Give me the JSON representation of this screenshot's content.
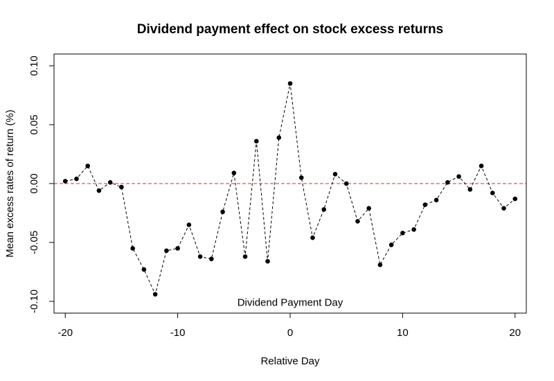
{
  "chart_data": {
    "type": "line",
    "title": "Dividend payment effect on stock excess returns",
    "xlabel": "Relative Day",
    "ylabel": "Mean excess rates of return (%)",
    "xlim": [
      -21,
      21
    ],
    "ylim": [
      -0.11,
      0.11
    ],
    "xticks": [
      -20,
      -10,
      0,
      10,
      20
    ],
    "xtick_labels": [
      "-20",
      "-10",
      "0",
      "10",
      "20"
    ],
    "yticks": [
      -0.1,
      -0.05,
      0.0,
      0.05,
      0.1
    ],
    "ytick_labels": [
      "-0.10",
      "-0.05",
      "0.00",
      "0.05",
      "0.10"
    ],
    "grid": false,
    "legend": "none",
    "series": [
      {
        "line_style": "dashed",
        "marker": "filled-circle",
        "color": "#000000",
        "x": [
          -20,
          -19,
          -18,
          -17,
          -16,
          -15,
          -14,
          -13,
          -12,
          -11,
          -10,
          -9,
          -8,
          -7,
          -6,
          -5,
          -4,
          -3,
          -2,
          -1,
          0,
          1,
          2,
          3,
          4,
          5,
          6,
          7,
          8,
          9,
          10,
          11,
          12,
          13,
          14,
          15,
          16,
          17,
          18,
          19,
          20
        ],
        "y": [
          0.002,
          0.004,
          0.015,
          -0.006,
          0.001,
          -0.003,
          -0.055,
          -0.073,
          -0.094,
          -0.057,
          -0.055,
          -0.035,
          -0.062,
          -0.064,
          -0.024,
          0.009,
          -0.062,
          0.036,
          -0.066,
          0.039,
          0.085,
          0.005,
          -0.046,
          -0.022,
          0.008,
          0.0,
          -0.032,
          -0.021,
          -0.069,
          -0.052,
          -0.042,
          -0.039,
          -0.018,
          -0.014,
          0.001,
          0.006,
          -0.005,
          0.015,
          -0.008,
          -0.021,
          -0.013
        ]
      }
    ],
    "reference_line": {
      "y": 0.0,
      "color": "#cc3333",
      "style": "dashed"
    },
    "annotations": [
      {
        "text": "Dividend Payment Day",
        "x": 0,
        "y": -0.101
      }
    ]
  }
}
